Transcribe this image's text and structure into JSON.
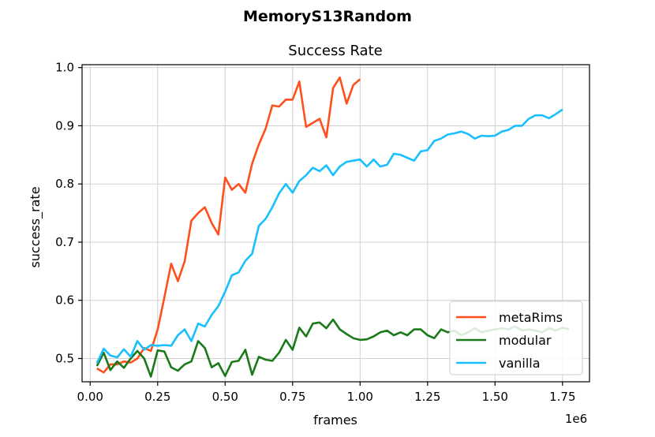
{
  "chart_data": {
    "type": "line",
    "suptitle": "MemoryS13Random",
    "title": "Success Rate",
    "xlabel": "frames",
    "ylabel": "success_rate",
    "x_offset_label": "1e6",
    "xlim": [
      -0.03,
      1.85
    ],
    "ylim": [
      0.46,
      1.005
    ],
    "x_ticks": [
      0.0,
      0.25,
      0.5,
      0.75,
      1.0,
      1.25,
      1.5,
      1.75
    ],
    "x_tick_labels": [
      "0.00",
      "0.25",
      "0.50",
      "0.75",
      "1.00",
      "1.25",
      "1.50",
      "1.75"
    ],
    "y_ticks": [
      0.5,
      0.6,
      0.7,
      0.8,
      0.9,
      1.0
    ],
    "y_tick_labels": [
      "0.5",
      "0.6",
      "0.7",
      "0.8",
      "0.9",
      "1.0"
    ],
    "grid": true,
    "legend_position": "lower right",
    "series": [
      {
        "name": "metaRims",
        "color": "#ff4f1a",
        "x": [
          0.025,
          0.05,
          0.075,
          0.1,
          0.125,
          0.15,
          0.175,
          0.2,
          0.225,
          0.25,
          0.275,
          0.3,
          0.325,
          0.35,
          0.375,
          0.4,
          0.425,
          0.45,
          0.475,
          0.5,
          0.525,
          0.55,
          0.575,
          0.6,
          0.625,
          0.65,
          0.675,
          0.7,
          0.725,
          0.75,
          0.775,
          0.8,
          0.825,
          0.85,
          0.875,
          0.9,
          0.925,
          0.95,
          0.975,
          1.0,
          1.025
        ],
        "y": [
          0.483,
          0.476,
          0.49,
          0.49,
          0.495,
          0.493,
          0.5,
          0.518,
          0.513,
          0.55,
          0.605,
          0.663,
          0.633,
          0.667,
          0.737,
          0.75,
          0.76,
          0.733,
          0.713,
          0.811,
          0.79,
          0.8,
          0.785,
          0.835,
          0.868,
          0.895,
          0.935,
          0.933,
          0.945,
          0.945,
          0.976,
          0.898,
          0.905,
          0.912,
          0.88,
          0.965,
          0.983,
          0.938,
          0.97,
          0.98,
          null
        ]
      },
      {
        "name": "modular",
        "color": "#1a7a1a",
        "x": [
          0.025,
          0.05,
          0.075,
          0.1,
          0.125,
          0.15,
          0.175,
          0.2,
          0.225,
          0.25,
          0.275,
          0.3,
          0.325,
          0.35,
          0.375,
          0.4,
          0.425,
          0.45,
          0.475,
          0.5,
          0.525,
          0.55,
          0.575,
          0.6,
          0.625,
          0.65,
          0.675,
          0.7,
          0.725,
          0.75,
          0.775,
          0.8,
          0.825,
          0.85,
          0.875,
          0.9,
          0.925,
          0.95,
          0.975,
          1.0,
          1.025,
          1.05,
          1.075,
          1.1,
          1.125,
          1.15,
          1.175,
          1.2,
          1.225,
          1.25,
          1.275,
          1.3,
          1.325,
          1.35,
          1.375,
          1.4,
          1.425,
          1.45,
          1.475,
          1.5,
          1.525,
          1.55,
          1.575,
          1.6,
          1.625,
          1.65,
          1.675,
          1.7,
          1.725,
          1.75,
          1.775
        ],
        "y": [
          0.487,
          0.51,
          0.48,
          0.495,
          0.484,
          0.5,
          0.513,
          0.5,
          0.469,
          0.514,
          0.512,
          0.485,
          0.479,
          0.49,
          0.495,
          0.53,
          0.518,
          0.485,
          0.492,
          0.47,
          0.494,
          0.496,
          0.515,
          0.472,
          0.503,
          0.498,
          0.496,
          0.51,
          0.532,
          0.515,
          0.553,
          0.538,
          0.56,
          0.562,
          0.552,
          0.567,
          0.55,
          0.542,
          0.535,
          0.532,
          0.533,
          0.538,
          0.545,
          0.548,
          0.54,
          0.545,
          0.54,
          0.55,
          0.55,
          0.54,
          0.535,
          0.55,
          0.545,
          0.548,
          0.54,
          0.545,
          0.552,
          0.545,
          0.548,
          0.55,
          0.552,
          0.55,
          0.555,
          0.548,
          0.55,
          0.548,
          0.545,
          0.552,
          0.548,
          0.553,
          0.55
        ]
      },
      {
        "name": "vanilla",
        "color": "#19bfff",
        "x": [
          0.025,
          0.05,
          0.075,
          0.1,
          0.125,
          0.15,
          0.175,
          0.2,
          0.225,
          0.25,
          0.275,
          0.3,
          0.325,
          0.35,
          0.375,
          0.4,
          0.425,
          0.45,
          0.475,
          0.5,
          0.525,
          0.55,
          0.575,
          0.6,
          0.625,
          0.65,
          0.675,
          0.7,
          0.725,
          0.75,
          0.775,
          0.8,
          0.825,
          0.85,
          0.875,
          0.9,
          0.925,
          0.95,
          0.975,
          1.0,
          1.025,
          1.05,
          1.075,
          1.1,
          1.125,
          1.15,
          1.175,
          1.2,
          1.225,
          1.25,
          1.275,
          1.3,
          1.325,
          1.35,
          1.375,
          1.4,
          1.425,
          1.45,
          1.475,
          1.5,
          1.525,
          1.55,
          1.575,
          1.6,
          1.625,
          1.65,
          1.675,
          1.7,
          1.725,
          1.75,
          1.775,
          1.8
        ],
        "y": [
          0.492,
          0.517,
          0.505,
          0.502,
          0.516,
          0.503,
          0.53,
          0.515,
          0.523,
          0.522,
          0.523,
          0.522,
          0.54,
          0.55,
          0.53,
          0.56,
          0.555,
          0.575,
          0.59,
          0.615,
          0.643,
          0.648,
          0.668,
          0.68,
          0.728,
          0.74,
          0.76,
          0.784,
          0.8,
          0.785,
          0.805,
          0.815,
          0.828,
          0.822,
          0.832,
          0.815,
          0.83,
          0.838,
          0.84,
          0.842,
          0.83,
          0.842,
          0.83,
          0.833,
          0.852,
          0.85,
          0.845,
          0.84,
          0.856,
          0.858,
          0.874,
          0.878,
          0.885,
          0.887,
          0.89,
          0.886,
          0.878,
          0.883,
          0.882,
          0.883,
          0.89,
          0.893,
          0.9,
          0.9,
          0.912,
          0.918,
          0.918,
          0.913,
          0.92,
          0.928,
          null,
          null
        ]
      }
    ]
  }
}
